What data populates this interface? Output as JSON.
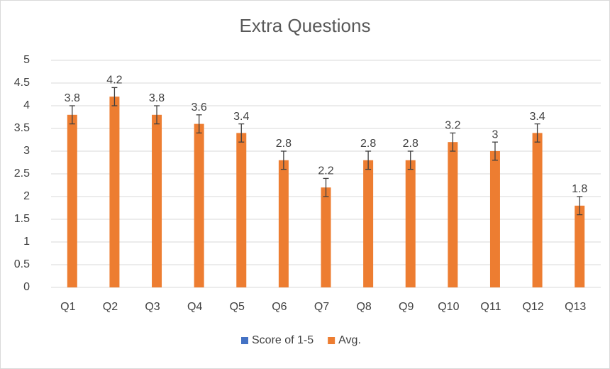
{
  "chart_data": {
    "type": "bar",
    "title": "Extra Questions",
    "categories": [
      "Q1",
      "Q2",
      "Q3",
      "Q4",
      "Q5",
      "Q6",
      "Q7",
      "Q8",
      "Q9",
      "Q10",
      "Q11",
      "Q12",
      "Q13"
    ],
    "series": [
      {
        "name": "Score of 1-5",
        "color": "#4472c4",
        "values": [
          null,
          null,
          null,
          null,
          null,
          null,
          null,
          null,
          null,
          null,
          null,
          null,
          null
        ]
      },
      {
        "name": "Avg.",
        "color": "#ed7d31",
        "values": [
          3.8,
          4.2,
          3.8,
          3.6,
          3.4,
          2.8,
          2.2,
          2.8,
          2.8,
          3.2,
          3,
          3.4,
          1.8
        ],
        "errors": [
          0.2,
          0.2,
          0.2,
          0.2,
          0.2,
          0.2,
          0.2,
          0.2,
          0.2,
          0.2,
          0.2,
          0.2,
          0.2
        ]
      }
    ],
    "ylim": [
      0,
      5
    ],
    "yticks": [
      0,
      0.5,
      1,
      1.5,
      2,
      2.5,
      3,
      3.5,
      4,
      4.5,
      5
    ],
    "grid": true,
    "legend": "bottom"
  }
}
